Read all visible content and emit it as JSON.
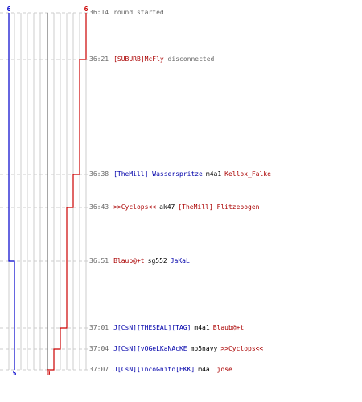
{
  "teams": {
    "blue": {
      "color": "#0000cc",
      "start": "6",
      "end": "5"
    },
    "red": {
      "color": "#cc0000",
      "start": "6",
      "end": "0"
    }
  },
  "grid_color": "#cccccc",
  "events": [
    {
      "time": "36:14",
      "type": "info",
      "text": "round started"
    },
    {
      "time": "36:21",
      "type": "disconnect",
      "player": "[SUBURB]McFly",
      "player_team": "red",
      "text": "disconnected"
    },
    {
      "time": "36:38",
      "type": "kill",
      "killer": "[TheMill] Wasserspritze",
      "killer_team": "blue",
      "weapon": "m4a1",
      "victim": "Kellox_Falke",
      "victim_team": "red"
    },
    {
      "time": "36:43",
      "type": "kill",
      "killer": ">>Cyclops<<",
      "killer_team": "red",
      "weapon": "ak47",
      "victim": "[TheMill] Flitzebogen",
      "victim_team": "red"
    },
    {
      "time": "36:51",
      "type": "kill",
      "killer": "Blaub@+t",
      "killer_team": "red",
      "weapon": "sg552",
      "victim": "JaKaL",
      "victim_team": "blue"
    },
    {
      "time": "37:01",
      "type": "kill",
      "killer": "J[CsN][THESEAL][TAG]",
      "killer_team": "blue",
      "weapon": "m4a1",
      "victim": "Blaub@+t",
      "victim_team": "red"
    },
    {
      "time": "37:04",
      "type": "kill",
      "killer": "J[CsN][vOGeLKaNAcKE",
      "killer_team": "blue",
      "weapon": "mp5navy",
      "victim": ">>Cyclops<<",
      "victim_team": "red"
    },
    {
      "time": "37:07",
      "type": "kill",
      "killer": "J[CsN][incoGnito[EKK]",
      "killer_team": "blue",
      "weapon": "m4a1",
      "victim": "jose",
      "victim_team": "red"
    }
  ]
}
